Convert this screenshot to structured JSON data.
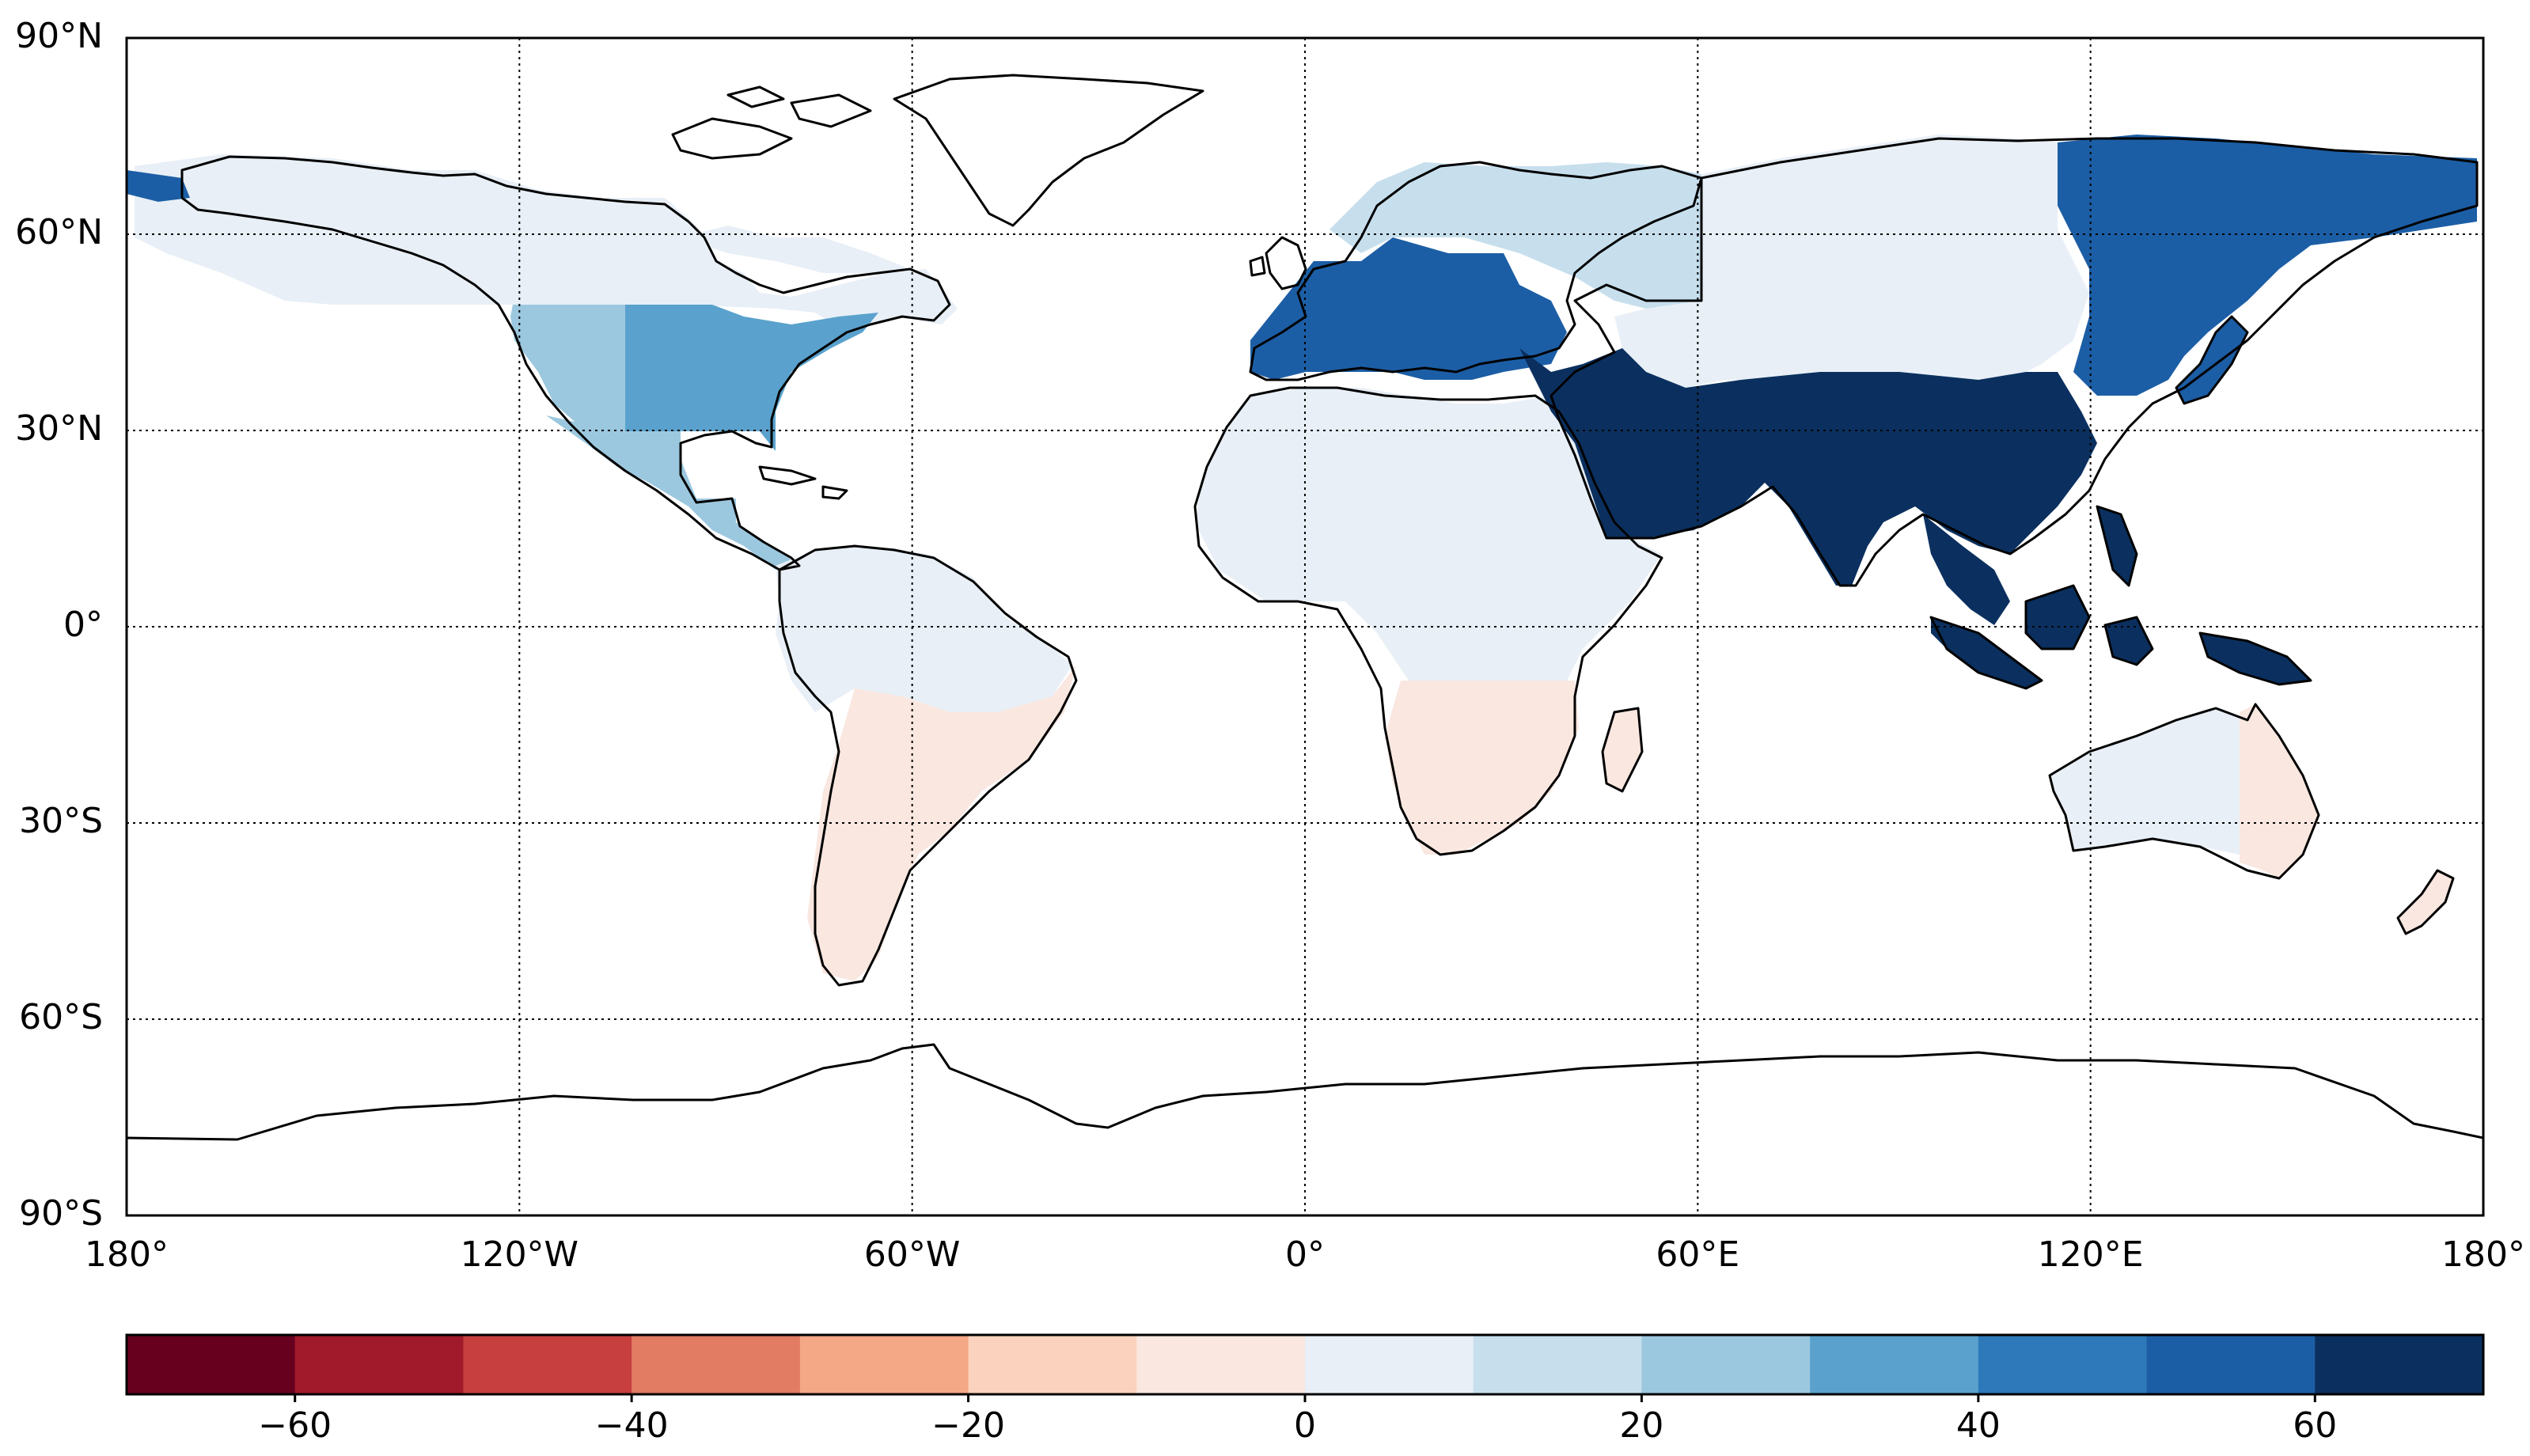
{
  "map": {
    "projection": "equirectangular",
    "extent": {
      "lon": [
        -180,
        180
      ],
      "lat": [
        -90,
        90
      ]
    },
    "gridlines": true,
    "lat_ticks": [
      {
        "value": 90,
        "label": "90°N"
      },
      {
        "value": 60,
        "label": "60°N"
      },
      {
        "value": 30,
        "label": "30°N"
      },
      {
        "value": 0,
        "label": "0°"
      },
      {
        "value": -30,
        "label": "30°S"
      },
      {
        "value": -60,
        "label": "60°S"
      },
      {
        "value": -90,
        "label": "90°S"
      }
    ],
    "lon_ticks": [
      {
        "value": -180,
        "label": "180°"
      },
      {
        "value": -120,
        "label": "120°W"
      },
      {
        "value": -60,
        "label": "60°W"
      },
      {
        "value": 0,
        "label": "0°"
      },
      {
        "value": 60,
        "label": "60°E"
      },
      {
        "value": 120,
        "label": "120°E"
      },
      {
        "value": 180,
        "label": "180°"
      }
    ],
    "regions": [
      {
        "name": "Alaska / Canada",
        "value": 2,
        "color": "#e8eff6"
      },
      {
        "name": "Western United States",
        "value": 25,
        "color": "#9cc8df"
      },
      {
        "name": "Eastern United States",
        "value": 35,
        "color": "#5aa2cd"
      },
      {
        "name": "Mexico / Central America",
        "value": 25,
        "color": "#9cc8df"
      },
      {
        "name": "Northern South America",
        "value": 2,
        "color": "#e8eff6"
      },
      {
        "name": "Southern South America",
        "value": -5,
        "color": "#f9e7e0"
      },
      {
        "name": "Western Europe",
        "value": 55,
        "color": "#1c5ea5"
      },
      {
        "name": "Scandinavia / Eastern Europe",
        "value": 15,
        "color": "#c7dfed"
      },
      {
        "name": "Northern Africa",
        "value": 2,
        "color": "#e8eff6"
      },
      {
        "name": "Southern Africa",
        "value": -5,
        "color": "#f9e7e0"
      },
      {
        "name": "Russia / Central Asia",
        "value": 2,
        "color": "#e8eff6"
      },
      {
        "name": "Middle East / South Asia",
        "value": 65,
        "color": "#0b305f"
      },
      {
        "name": "East Asia / Siberia",
        "value": 55,
        "color": "#1c5ea5"
      },
      {
        "name": "Southeast Asia / Indonesia",
        "value": 65,
        "color": "#0b305f"
      },
      {
        "name": "Western Australia",
        "value": 2,
        "color": "#e8eff6"
      },
      {
        "name": "Eastern Australia / NZ",
        "value": -5,
        "color": "#f9e7e0"
      }
    ]
  },
  "colorbar": {
    "range": [
      -70,
      70
    ],
    "step": 10,
    "colors": [
      "#67001f",
      "#a11a2b",
      "#c73f3f",
      "#e27c63",
      "#f4a886",
      "#fbd2bd",
      "#f9e7e0",
      "#e8eff6",
      "#c7dfed",
      "#9cc8df",
      "#5aa2cd",
      "#2d79b9",
      "#1c5ea5",
      "#0b305f"
    ],
    "ticks": [
      {
        "value": -60,
        "label": "−60"
      },
      {
        "value": -40,
        "label": "−40"
      },
      {
        "value": -20,
        "label": "−20"
      },
      {
        "value": 0,
        "label": "0"
      },
      {
        "value": 20,
        "label": "20"
      },
      {
        "value": 40,
        "label": "40"
      },
      {
        "value": 60,
        "label": "60"
      }
    ]
  }
}
